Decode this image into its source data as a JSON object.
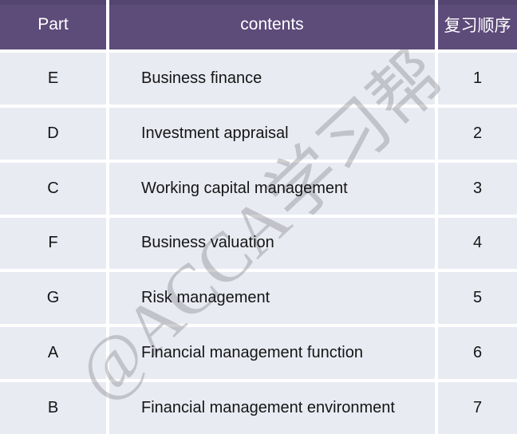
{
  "chart_data": {
    "type": "table",
    "columns": [
      "Part",
      "contents",
      "复习顺序"
    ],
    "rows": [
      [
        "E",
        "Business finance",
        "1"
      ],
      [
        "D",
        "Investment appraisal",
        "2"
      ],
      [
        "C",
        "Working capital management",
        "3"
      ],
      [
        "F",
        "Business valuation",
        "4"
      ],
      [
        "G",
        "Risk management",
        "5"
      ],
      [
        "A",
        "Financial management function",
        "6"
      ],
      [
        "B",
        "Financial management environment",
        "7"
      ]
    ],
    "layout_hints": {
      "header_row": true,
      "grid": "white gaps between cells",
      "column_alignment": [
        "center",
        "left",
        "center"
      ]
    }
  },
  "watermark": {
    "text": "@ACCA学习帮"
  },
  "colors": {
    "header_bg": "#5d4b7a",
    "header_bg_dark": "#534570",
    "header_text": "#ffffff",
    "row_bg": "#e9ebf3",
    "divider": "#ffffff",
    "body_text": "#151515",
    "watermark": "#8e8e94"
  }
}
